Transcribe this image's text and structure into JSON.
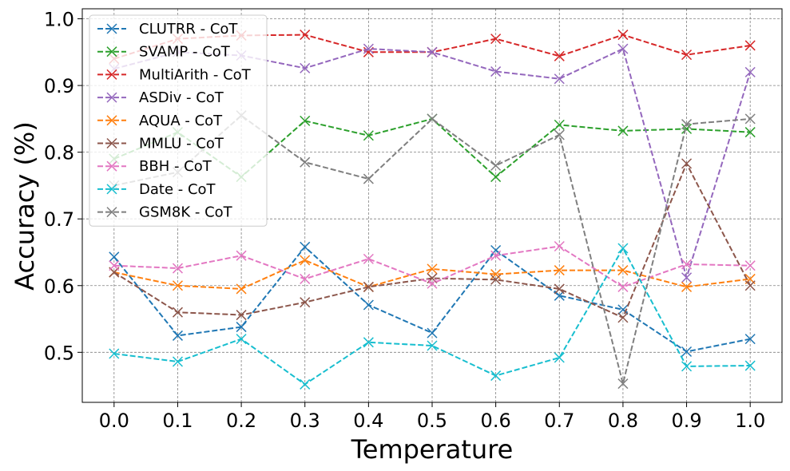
{
  "chart_data": {
    "type": "line",
    "xlabel": "Temperature",
    "ylabel": "Accuracy (%)",
    "xlim": [
      -0.05,
      1.05
    ],
    "ylim": [
      0.425,
      1.015
    ],
    "x": [
      0.0,
      0.1,
      0.2,
      0.3,
      0.4,
      0.5,
      0.6,
      0.7,
      0.8,
      0.9,
      1.0
    ],
    "xticks": [
      "0.0",
      "0.1",
      "0.2",
      "0.3",
      "0.4",
      "0.5",
      "0.6",
      "0.7",
      "0.8",
      "0.9",
      "1.0"
    ],
    "yticks": [
      "0.5",
      "0.6",
      "0.7",
      "0.8",
      "0.9",
      "1.0"
    ],
    "ytick_values": [
      0.5,
      0.6,
      0.7,
      0.8,
      0.9,
      1.0
    ],
    "grid": true,
    "legend_position": "top-left",
    "marker": "x",
    "line_style": "dashed",
    "series": [
      {
        "name": "CLUTRR - CoT",
        "color": "#1f77b4",
        "values": [
          0.643,
          0.525,
          0.538,
          0.658,
          0.571,
          0.529,
          0.653,
          0.585,
          0.564,
          0.501,
          0.52
        ]
      },
      {
        "name": "SVAMP - CoT",
        "color": "#2ca02c",
        "values": [
          0.79,
          0.83,
          0.763,
          0.847,
          0.825,
          0.85,
          0.763,
          0.841,
          0.832,
          0.835,
          0.83
        ]
      },
      {
        "name": "MultiArith - CoT",
        "color": "#d62728",
        "values": [
          0.94,
          0.97,
          0.975,
          0.976,
          0.95,
          0.95,
          0.97,
          0.944,
          0.976,
          0.946,
          0.96
        ]
      },
      {
        "name": "ASDiv - CoT",
        "color": "#9467bd",
        "values": [
          0.925,
          0.95,
          0.945,
          0.926,
          0.955,
          0.95,
          0.921,
          0.91,
          0.955,
          0.612,
          0.92
        ]
      },
      {
        "name": "AQUA - CoT",
        "color": "#ff7f0e",
        "values": [
          0.62,
          0.6,
          0.595,
          0.638,
          0.598,
          0.625,
          0.617,
          0.623,
          0.623,
          0.598,
          0.61
        ]
      },
      {
        "name": "MMLU - CoT",
        "color": "#8c564b",
        "values": [
          0.62,
          0.56,
          0.556,
          0.575,
          0.598,
          0.611,
          0.609,
          0.595,
          0.552,
          0.783,
          0.6
        ]
      },
      {
        "name": "BBH - CoT",
        "color": "#e377c2",
        "values": [
          0.63,
          0.626,
          0.645,
          0.61,
          0.64,
          0.603,
          0.645,
          0.659,
          0.598,
          0.632,
          0.63
        ]
      },
      {
        "name": "Date - CoT",
        "color": "#17becf",
        "values": [
          0.498,
          0.486,
          0.52,
          0.452,
          0.515,
          0.51,
          0.465,
          0.492,
          0.656,
          0.479,
          0.48
        ]
      },
      {
        "name": "GSM8K - CoT",
        "color": "#7f7f7f",
        "values": [
          0.75,
          0.77,
          0.855,
          0.785,
          0.76,
          0.85,
          0.78,
          0.826,
          0.453,
          0.842,
          0.85
        ]
      }
    ]
  }
}
